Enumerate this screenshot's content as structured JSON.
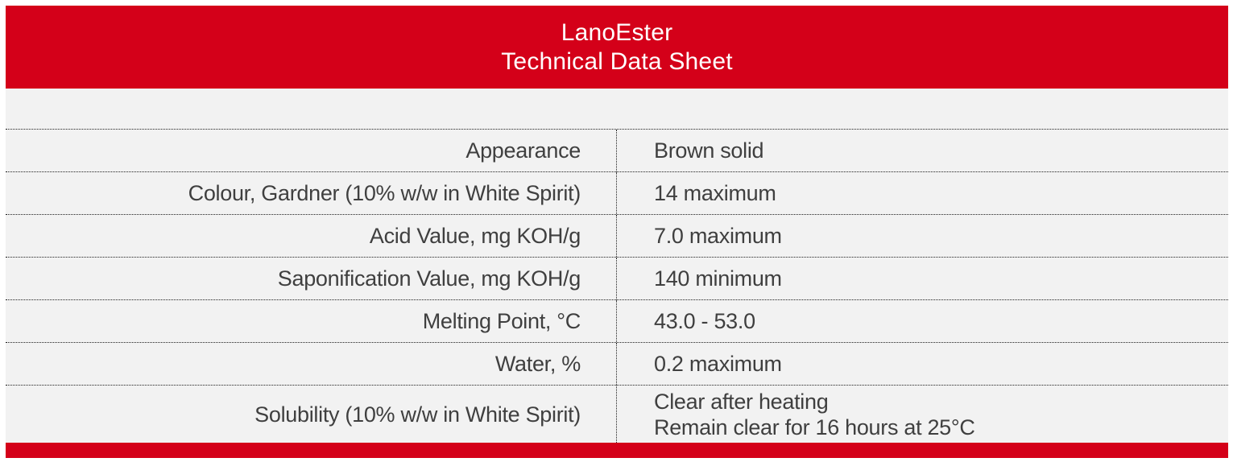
{
  "header": {
    "title_line1": "LanoEster",
    "title_line2": "Technical Data Sheet"
  },
  "table": {
    "rows": [
      {
        "property": "Appearance",
        "value_lines": [
          "Brown solid"
        ]
      },
      {
        "property": "Colour, Gardner (10% w/w in White Spirit)",
        "value_lines": [
          "14 maximum"
        ]
      },
      {
        "property": "Acid Value, mg KOH/g",
        "value_lines": [
          "7.0 maximum"
        ]
      },
      {
        "property": "Saponification Value, mg KOH/g",
        "value_lines": [
          "140 minimum"
        ]
      },
      {
        "property": "Melting Point, °C",
        "value_lines": [
          "43.0 - 53.0"
        ]
      },
      {
        "property": "Water, %",
        "value_lines": [
          "0.2 maximum"
        ]
      },
      {
        "property": "Solubility (10% w/w in White Spirit)",
        "value_lines": [
          "Clear after heating",
          "Remain clear for 16 hours at 25°C"
        ]
      }
    ]
  },
  "colors": {
    "accent_red": "#d40019",
    "row_background": "#f2f2f2",
    "text": "#3f3f3f"
  }
}
